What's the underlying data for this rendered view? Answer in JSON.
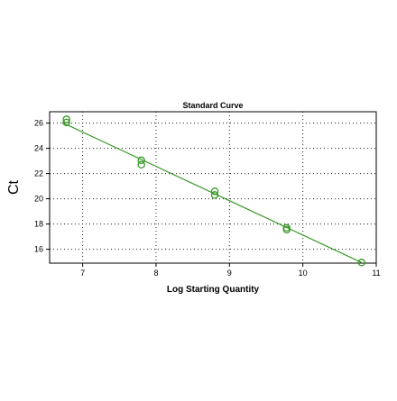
{
  "chart_data": {
    "type": "scatter",
    "title": "Standard Curve",
    "xlabel": "Log Starting Quantity",
    "ylabel": "Ct",
    "xlim": [
      6.55,
      11.0
    ],
    "ylim": [
      14.9,
      26.9
    ],
    "x_ticks": [
      7,
      8,
      9,
      10,
      11
    ],
    "y_ticks": [
      16,
      18,
      20,
      22,
      24,
      26
    ],
    "grid": true,
    "legend": "none",
    "colors": {
      "series": "#3a9a2a",
      "grid": "#222222",
      "axis": "#000000"
    },
    "series": [
      {
        "points": [
          {
            "x": 6.78,
            "y": 26.3
          },
          {
            "x": 6.78,
            "y": 26.05
          },
          {
            "x": 7.8,
            "y": 23.05
          },
          {
            "x": 7.8,
            "y": 22.7
          },
          {
            "x": 8.8,
            "y": 20.6
          },
          {
            "x": 8.8,
            "y": 20.3
          },
          {
            "x": 9.78,
            "y": 17.7
          },
          {
            "x": 9.78,
            "y": 17.55
          },
          {
            "x": 10.8,
            "y": 14.95
          }
        ],
        "fit_line": [
          {
            "x": 6.72,
            "y": 26.05
          },
          {
            "x": 10.8,
            "y": 14.95
          }
        ]
      }
    ]
  }
}
